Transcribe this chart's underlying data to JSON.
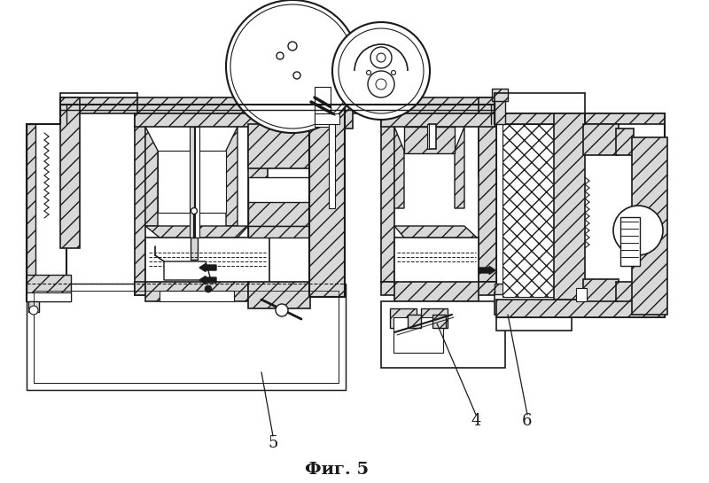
{
  "caption": "Фиг. 5",
  "bg_color": "#f5f5f0",
  "line_color": "#1a1a1a",
  "fig_width": 8.0,
  "fig_height": 5.45,
  "dpi": 100,
  "label_5": [
    305,
    62
  ],
  "label_4": [
    537,
    75
  ],
  "label_6": [
    597,
    75
  ],
  "label_5_line": [
    [
      295,
      420
    ],
    [
      305,
      62
    ]
  ],
  "label_4_line": [
    [
      493,
      365
    ],
    [
      537,
      75
    ]
  ],
  "label_6_line": [
    [
      573,
      355
    ],
    [
      597,
      75
    ]
  ]
}
